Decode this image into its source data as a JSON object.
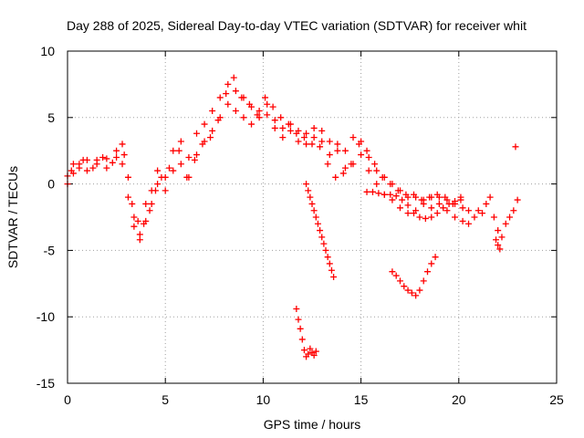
{
  "chart_data": {
    "type": "scatter",
    "title": "Day 288 of 2025, Sidereal Day-to-day VTEC variation (SDTVAR) for receiver whit",
    "xlabel": "GPS time / hours",
    "ylabel": "SDTVAR / TECUs",
    "xlim": [
      0,
      25
    ],
    "ylim": [
      -15,
      10
    ],
    "xticks": [
      0,
      5,
      10,
      15,
      20,
      25
    ],
    "yticks": [
      10,
      5,
      0,
      -5,
      -10,
      -15
    ],
    "grid": true,
    "marker": "plus",
    "color": "#ff0000",
    "series": [
      {
        "name": "main-trace-a",
        "x": [
          0,
          0.3,
          0.6,
          1.0,
          1.5,
          2.0,
          2.5,
          2.8,
          3.1,
          3.4,
          3.7,
          4.0,
          4.3,
          4.6,
          5.0,
          5.4,
          5.8,
          6.2,
          6.6,
          7.0,
          7.4,
          7.8,
          8.2,
          8.6,
          9.0,
          9.4,
          9.8,
          10.2,
          10.6,
          11.0,
          11.4,
          11.8,
          12.2,
          12.6,
          13.0,
          13.4,
          13.8,
          14.2,
          14.6,
          15.0,
          15.4,
          15.8,
          16.2,
          16.6,
          17.0,
          17.4,
          17.8,
          18.2,
          18.6,
          19.0,
          19.4,
          19.8,
          20.2,
          20.5
        ],
        "y": [
          0.6,
          1.5,
          1.2,
          1.8,
          1.5,
          1.9,
          2.0,
          3.0,
          0.5,
          -2.5,
          -4.2,
          -2.8,
          -0.5,
          1.0,
          0.5,
          2.5,
          3.2,
          2.0,
          3.8,
          4.5,
          5.5,
          6.5,
          7.5,
          7.0,
          6.5,
          5.8,
          5.5,
          5.2,
          4.8,
          4.2,
          4.5,
          4.0,
          3.8,
          4.2,
          4.0,
          3.2,
          3.0,
          2.5,
          3.5,
          3.2,
          2.0,
          1.0,
          0.5,
          0.0,
          -0.5,
          -1.0,
          -1.0,
          -1.2,
          -1.0,
          -1.0,
          -1.2,
          -1.5,
          -1.8,
          -2.0
        ]
      },
      {
        "name": "main-trace-b",
        "x": [
          0,
          0.3,
          0.6,
          1.0,
          1.5,
          2.0,
          2.5,
          2.8,
          3.1,
          3.4,
          3.7,
          4.0,
          4.3,
          4.6,
          5.0,
          5.4,
          5.8,
          6.2,
          6.6,
          7.0,
          7.4,
          7.8,
          8.2,
          8.6,
          9.0,
          9.4,
          9.8,
          10.2,
          10.6,
          11.0,
          11.4,
          11.8,
          12.2,
          12.6,
          13.0,
          13.4,
          13.8,
          14.2,
          14.6,
          15.0,
          15.4,
          15.8,
          16.2,
          16.6,
          17.0,
          17.4,
          17.8,
          18.2,
          18.6,
          19.0,
          19.4,
          19.8,
          20.2,
          20.5
        ],
        "y": [
          0.0,
          0.8,
          1.5,
          1.0,
          1.8,
          1.2,
          2.5,
          1.5,
          -1.0,
          -3.2,
          -3.8,
          -1.5,
          -1.5,
          0.0,
          -0.5,
          1.0,
          1.5,
          0.5,
          2.2,
          3.2,
          4.0,
          5.0,
          6.0,
          5.5,
          5.0,
          4.5,
          5.0,
          6.0,
          4.2,
          3.5,
          4.0,
          3.2,
          3.0,
          3.5,
          3.2,
          2.2,
          2.5,
          1.2,
          1.5,
          2.2,
          1.0,
          0.0,
          -0.8,
          -1.2,
          -1.8,
          -2.2,
          -2.0,
          -1.5,
          -1.8,
          -1.5,
          -2.0,
          -2.5,
          -2.8,
          -3.0
        ]
      },
      {
        "name": "main-trace-c",
        "x": [
          0.2,
          0.8,
          1.3,
          1.8,
          2.3,
          2.9,
          3.3,
          3.6,
          3.9,
          4.2,
          4.5,
          4.8,
          5.2,
          5.7,
          6.1,
          6.5,
          6.9,
          7.3,
          7.7,
          8.1,
          8.5,
          8.9,
          9.3,
          9.7,
          10.1,
          10.5,
          10.9,
          11.3,
          11.7,
          12.1,
          12.5,
          12.9,
          13.3,
          13.7,
          14.1,
          14.5,
          14.9,
          15.3,
          15.7,
          16.1,
          16.5,
          16.9,
          17.3,
          17.7,
          18.1,
          18.5,
          18.9,
          19.3,
          19.7,
          20.1
        ],
        "y": [
          1.0,
          1.8,
          1.2,
          2.0,
          1.6,
          2.2,
          -1.5,
          -2.8,
          -3.0,
          -2.0,
          -0.5,
          0.5,
          1.2,
          2.5,
          0.5,
          1.8,
          3.0,
          3.5,
          4.8,
          6.8,
          8.0,
          6.5,
          6.0,
          5.2,
          6.5,
          5.8,
          5.0,
          4.5,
          3.8,
          3.5,
          3.0,
          2.8,
          1.5,
          0.5,
          0.8,
          1.5,
          3.0,
          2.5,
          1.5,
          0.5,
          0.0,
          -0.5,
          -0.8,
          -0.8,
          -1.2,
          -1.0,
          -0.8,
          -1.0,
          -1.5,
          -1.0
        ]
      },
      {
        "name": "branch-12h",
        "x": [
          12.2,
          12.3,
          12.4,
          12.5,
          12.6,
          12.7,
          12.8,
          12.9,
          13.0,
          13.1,
          13.2,
          13.3,
          13.4,
          13.5,
          13.6
        ],
        "y": [
          0.0,
          -0.5,
          -1.0,
          -1.5,
          -2.0,
          -2.5,
          -3.0,
          -3.5,
          -4.0,
          -4.5,
          -5.0,
          -5.5,
          -6.0,
          -6.5,
          -7.0
        ]
      },
      {
        "name": "branch-16h-low",
        "x": [
          15.3,
          15.6,
          15.9,
          16.2,
          16.5,
          16.8,
          17.1,
          17.4,
          17.7,
          18.0,
          18.3,
          18.6,
          18.9,
          19.2,
          19.5,
          19.8,
          20.1
        ],
        "y": [
          -0.6,
          -0.6,
          -0.7,
          -0.8,
          -0.8,
          -0.9,
          -1.2,
          -1.6,
          -2.2,
          -2.5,
          -2.6,
          -2.5,
          -2.2,
          -1.8,
          -1.5,
          -1.3,
          -1.2
        ]
      },
      {
        "name": "late-cluster",
        "x": [
          20.8,
          21.0,
          21.2,
          21.4,
          21.6,
          21.8,
          22.0,
          22.2,
          22.4,
          22.6,
          22.8,
          23.0
        ],
        "y": [
          -2.5,
          -2.0,
          -2.2,
          -1.5,
          -1.0,
          -2.5,
          -3.5,
          -4.0,
          -3.0,
          -2.5,
          -2.0,
          -1.2
        ]
      },
      {
        "name": "late-dip",
        "x": [
          21.9,
          22.0,
          22.1
        ],
        "y": [
          -4.2,
          -4.6,
          -4.9
        ]
      },
      {
        "name": "outlier-point",
        "x": [
          22.9
        ],
        "y": [
          2.8
        ]
      },
      {
        "name": "dip-17h",
        "x": [
          16.6,
          16.8,
          17.0,
          17.2,
          17.4,
          17.6,
          17.8,
          18.0,
          18.2,
          18.4,
          18.6,
          18.8
        ],
        "y": [
          -6.6,
          -6.9,
          -7.3,
          -7.7,
          -8.0,
          -8.2,
          -8.4,
          -8.0,
          -7.3,
          -6.6,
          -6.0,
          -5.5
        ]
      },
      {
        "name": "dip-12h",
        "x": [
          11.7,
          11.8,
          11.9,
          12.0,
          12.1,
          12.2,
          12.3,
          12.4,
          12.5,
          12.6,
          12.7
        ],
        "y": [
          -9.4,
          -10.2,
          -10.9,
          -11.7,
          -12.5,
          -13.0,
          -12.8,
          -12.4,
          -12.7,
          -12.9,
          -12.6
        ]
      }
    ]
  }
}
